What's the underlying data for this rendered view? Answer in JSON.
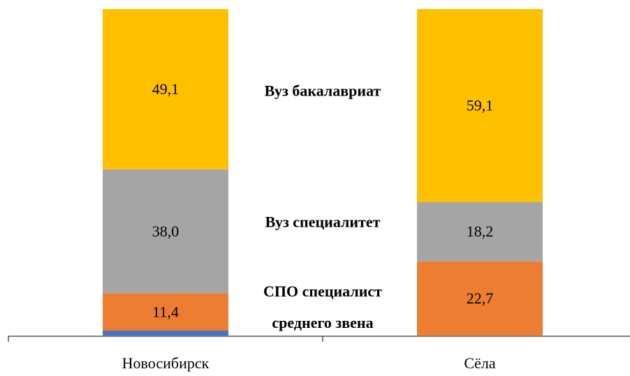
{
  "chart_data": {
    "type": "stacked_bar",
    "categories": [
      "Новосибирск",
      "Сёла"
    ],
    "ylim": [
      0,
      100
    ],
    "series": [
      {
        "color": "#4472c4",
        "values": [
          1.5,
          0
        ]
      },
      {
        "name": "СПО специалист среднего звена",
        "color": "#ed7d31",
        "values": [
          11.4,
          22.7
        ],
        "value_labels": [
          "11,4",
          "22,7"
        ]
      },
      {
        "name": "Вуз специалитет",
        "color": "#a5a5a5",
        "values": [
          38.0,
          18.2
        ],
        "value_labels": [
          "38,0",
          "18,2"
        ]
      },
      {
        "name": "Вуз бакалавриат",
        "color": "#ffc000",
        "values": [
          49.1,
          59.1
        ],
        "value_labels": [
          "49,1",
          "59,1"
        ]
      }
    ]
  }
}
